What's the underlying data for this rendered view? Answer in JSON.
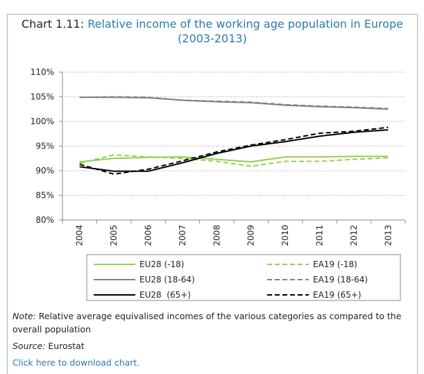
{
  "chart_data": {
    "type": "line",
    "chart_label": "Chart 1.11:",
    "title": "Relative income of the working age population in Europe (2003-2013)",
    "categories": [
      "2004",
      "2005",
      "2006",
      "2007",
      "2008",
      "2009",
      "2010",
      "2011",
      "2012",
      "2013"
    ],
    "series": [
      {
        "name": "EU28 (-18)",
        "color": "#92d050",
        "dashed": false,
        "values": [
          91.8,
          92.5,
          92.7,
          92.8,
          92.3,
          91.8,
          92.8,
          92.8,
          92.9,
          92.9
        ]
      },
      {
        "name": "EA19 (-18)",
        "color": "#92d050",
        "dashed": true,
        "values": [
          91.5,
          93.2,
          92.8,
          92.5,
          91.9,
          90.9,
          91.9,
          91.9,
          92.3,
          92.6
        ]
      },
      {
        "name": "EU28 (18-64)",
        "color": "#808080",
        "dashed": false,
        "values": [
          104.9,
          104.9,
          104.8,
          104.3,
          104.0,
          103.8,
          103.3,
          103.0,
          102.8,
          102.5
        ]
      },
      {
        "name": "EA19 (18-64)",
        "color": "#808080",
        "dashed": true,
        "values": [
          104.9,
          105.0,
          104.9,
          104.3,
          104.1,
          103.9,
          103.4,
          103.1,
          102.9,
          102.6
        ]
      },
      {
        "name": "EU28  (65+)",
        "color": "#000000",
        "dashed": false,
        "values": [
          90.8,
          89.9,
          89.9,
          91.6,
          93.5,
          95.0,
          95.9,
          97.0,
          97.8,
          98.3
        ]
      },
      {
        "name": "EA19 (65+)",
        "color": "#000000",
        "dashed": true,
        "values": [
          91.3,
          89.3,
          90.3,
          92.0,
          93.8,
          95.2,
          96.3,
          97.6,
          98.0,
          98.8
        ]
      }
    ],
    "ylim": [
      80,
      110
    ],
    "yticks": [
      {
        "value": 80,
        "label": "80%"
      },
      {
        "value": 85,
        "label": "85%"
      },
      {
        "value": 90,
        "label": "90%"
      },
      {
        "value": 95,
        "label": "95%"
      },
      {
        "value": 100,
        "label": "100%"
      },
      {
        "value": 105,
        "label": "105%"
      },
      {
        "value": 110,
        "label": "110%"
      }
    ],
    "grid": true
  },
  "notes": {
    "note_label": "Note:",
    "note": "Relative average equivalised incomes of the various categories as compared to the overall population",
    "source_label": "Source:",
    "source": "Eurostat",
    "link": "Click here to download chart."
  }
}
